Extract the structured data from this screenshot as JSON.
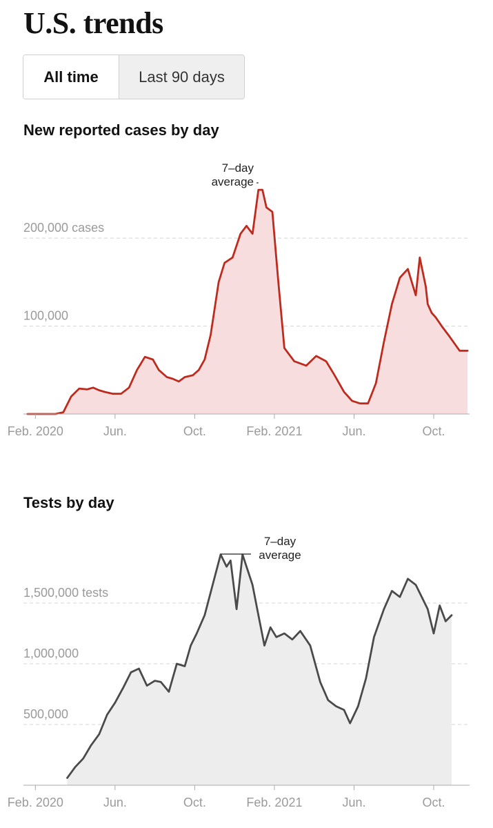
{
  "header": {
    "title": "U.S. trends"
  },
  "toggle": {
    "all_time_label": "All time",
    "last_90_label": "Last 90 days",
    "selected": "All time"
  },
  "chart_data": [
    {
      "type": "area",
      "title": "New reported cases by day",
      "annotation": [
        "7–day",
        "average"
      ],
      "color": "#bd2a1e",
      "fill": "#f7dddd",
      "xlim": [
        -0.6,
        21.8
      ],
      "ylim": [
        0,
        270000
      ],
      "y_ticks": [
        {
          "value": 100000,
          "label": "100,000"
        },
        {
          "value": 200000,
          "label": "200,000 cases"
        }
      ],
      "x_ticks": [
        {
          "value": 0,
          "label": "Feb. 2020"
        },
        {
          "value": 4,
          "label": "Jun."
        },
        {
          "value": 8,
          "label": "Oct."
        },
        {
          "value": 12,
          "label": "Feb. 2021"
        },
        {
          "value": 16,
          "label": "Jun."
        },
        {
          "value": 20,
          "label": "Oct."
        }
      ],
      "annotation_x": 11.4,
      "x": [
        -0.4,
        1.0,
        1.4,
        1.8,
        2.2,
        2.6,
        2.9,
        3.2,
        3.5,
        3.9,
        4.3,
        4.7,
        5.1,
        5.5,
        5.9,
        6.2,
        6.6,
        6.9,
        7.2,
        7.5,
        7.9,
        8.2,
        8.5,
        8.8,
        9.2,
        9.5,
        9.9,
        10.3,
        10.6,
        10.9,
        11.2,
        11.4,
        11.6,
        11.9,
        12.2,
        12.5,
        13.0,
        13.6,
        14.1,
        14.6,
        15.0,
        15.5,
        15.9,
        16.3,
        16.7,
        17.1,
        17.5,
        17.9,
        18.3,
        18.7,
        19.1,
        19.3,
        19.6,
        19.7,
        19.9,
        20.1,
        20.4,
        20.8,
        21.3,
        21.7
      ],
      "y": [
        0,
        0,
        2000,
        20000,
        29000,
        28000,
        30000,
        27000,
        25000,
        23000,
        23000,
        30000,
        50000,
        65000,
        62000,
        50000,
        42000,
        40000,
        37000,
        42000,
        44000,
        50000,
        62000,
        90000,
        150000,
        172000,
        178000,
        205000,
        214000,
        205000,
        255000,
        255000,
        235000,
        230000,
        150000,
        75000,
        60000,
        55000,
        66000,
        60000,
        45000,
        25000,
        15000,
        12000,
        12000,
        35000,
        82000,
        125000,
        155000,
        165000,
        135000,
        178000,
        145000,
        125000,
        115000,
        110000,
        100000,
        88000,
        72000,
        72000
      ]
    },
    {
      "type": "area",
      "title": "Tests by day",
      "annotation": [
        "7–day",
        "average"
      ],
      "color": "#4a4a4a",
      "fill": "#ededed",
      "xlim": [
        -0.6,
        21.8
      ],
      "ylim": [
        0,
        2000000
      ],
      "y_ticks": [
        {
          "value": 500000,
          "label": "500,000"
        },
        {
          "value": 1000000,
          "label": "1,000,000"
        },
        {
          "value": 1500000,
          "label": "1,500,000 tests"
        }
      ],
      "x_ticks": [
        {
          "value": 0,
          "label": "Feb. 2020"
        },
        {
          "value": 4,
          "label": "Jun."
        },
        {
          "value": 8,
          "label": "Oct."
        },
        {
          "value": 12,
          "label": "Feb. 2021"
        },
        {
          "value": 16,
          "label": "Jun."
        },
        {
          "value": 20,
          "label": "Oct."
        }
      ],
      "annotation_x": 9.5,
      "x": [
        1.6,
        2.0,
        2.4,
        2.8,
        3.2,
        3.6,
        4.0,
        4.4,
        4.8,
        5.2,
        5.6,
        6.0,
        6.3,
        6.7,
        7.1,
        7.5,
        7.8,
        8.1,
        8.5,
        8.9,
        9.3,
        9.6,
        9.8,
        10.1,
        10.4,
        10.6,
        10.9,
        11.2,
        11.5,
        11.8,
        12.1,
        12.5,
        12.9,
        13.3,
        13.8,
        14.3,
        14.7,
        15.1,
        15.5,
        15.8,
        16.2,
        16.6,
        17.0,
        17.5,
        17.9,
        18.3,
        18.7,
        19.1,
        19.4,
        19.7,
        20.0,
        20.3,
        20.6,
        20.9
      ],
      "y": [
        60000,
        150000,
        220000,
        330000,
        420000,
        580000,
        680000,
        800000,
        930000,
        960000,
        820000,
        860000,
        850000,
        770000,
        1000000,
        980000,
        1150000,
        1250000,
        1400000,
        1650000,
        1900000,
        1800000,
        1850000,
        1450000,
        1900000,
        1800000,
        1650000,
        1400000,
        1150000,
        1300000,
        1220000,
        1250000,
        1200000,
        1270000,
        1150000,
        850000,
        700000,
        650000,
        620000,
        510000,
        650000,
        880000,
        1220000,
        1450000,
        1600000,
        1550000,
        1700000,
        1650000,
        1550000,
        1450000,
        1250000,
        1480000,
        1350000,
        1400000
      ]
    }
  ]
}
